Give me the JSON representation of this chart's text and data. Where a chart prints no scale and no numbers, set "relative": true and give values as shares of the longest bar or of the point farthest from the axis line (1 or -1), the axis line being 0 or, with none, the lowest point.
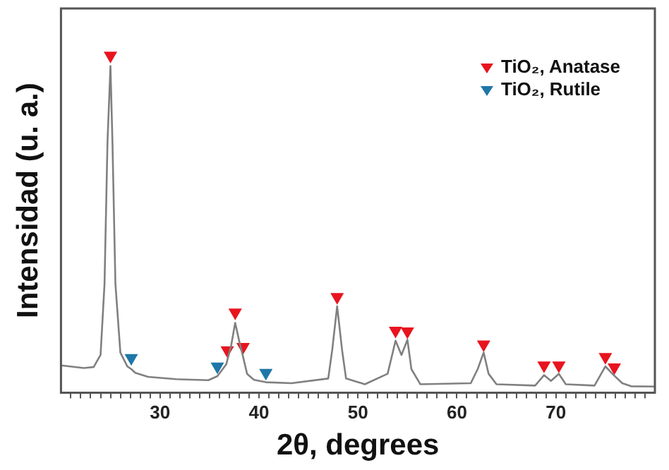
{
  "chart_data": {
    "type": "line",
    "relative": true,
    "xlabel": "2θ, degrees",
    "ylabel": "Intensidad (u. a.)",
    "xlim": [
      20,
      80
    ],
    "xticks": [
      {
        "value": 21,
        "label": null
      },
      {
        "value": 22,
        "label": null
      },
      {
        "value": 23,
        "label": null
      },
      {
        "value": 24,
        "label": null
      },
      {
        "value": 25,
        "label": null
      },
      {
        "value": 26,
        "label": null
      },
      {
        "value": 27,
        "label": null
      },
      {
        "value": 28,
        "label": null
      },
      {
        "value": 29,
        "label": null
      },
      30,
      {
        "value": 31,
        "label": null
      },
      {
        "value": 32,
        "label": null
      },
      {
        "value": 33,
        "label": null
      },
      {
        "value": 34,
        "label": null
      },
      {
        "value": 35,
        "label": null
      },
      {
        "value": 36,
        "label": null
      },
      {
        "value": 37,
        "label": null
      },
      {
        "value": 38,
        "label": null
      },
      {
        "value": 39,
        "label": null
      },
      40,
      {
        "value": 41,
        "label": null
      },
      {
        "value": 42,
        "label": null
      },
      {
        "value": 43,
        "label": null
      },
      {
        "value": 44,
        "label": null
      },
      {
        "value": 45,
        "label": null
      },
      {
        "value": 46,
        "label": null
      },
      {
        "value": 47,
        "label": null
      },
      {
        "value": 48,
        "label": null
      },
      {
        "value": 49,
        "label": null
      },
      50,
      {
        "value": 51,
        "label": null
      },
      {
        "value": 52,
        "label": null
      },
      {
        "value": 53,
        "label": null
      },
      {
        "value": 54,
        "label": null
      },
      {
        "value": 55,
        "label": null
      },
      {
        "value": 56,
        "label": null
      },
      {
        "value": 57,
        "label": null
      },
      {
        "value": 58,
        "label": null
      },
      {
        "value": 59,
        "label": null
      },
      60,
      {
        "value": 61,
        "label": null
      },
      {
        "value": 62,
        "label": null
      },
      {
        "value": 63,
        "label": null
      },
      {
        "value": 64,
        "label": null
      },
      {
        "value": 65,
        "label": null
      },
      {
        "value": 66,
        "label": null
      },
      {
        "value": 67,
        "label": null
      },
      {
        "value": 68,
        "label": null
      },
      {
        "value": 69,
        "label": null
      },
      70,
      {
        "value": 71,
        "label": null
      },
      {
        "value": 72,
        "label": null
      },
      {
        "value": 73,
        "label": null
      },
      {
        "value": 74,
        "label": null
      },
      {
        "value": 75,
        "label": null
      },
      {
        "value": 76,
        "label": null
      },
      {
        "value": 77,
        "label": null
      },
      {
        "value": 78,
        "label": null
      },
      {
        "value": 79,
        "label": null
      }
    ],
    "legend": "top right",
    "marker": "none",
    "line_style": "solid",
    "series": [
      {
        "type": "line",
        "color": "#808080",
        "x": [
          20,
          22.3,
          23.3,
          24.0,
          24.4,
          24.7,
          25.0,
          25.2,
          25.5,
          26.0,
          26.7,
          27.1,
          27.5,
          28.8,
          31.6,
          34.9,
          35.8,
          36.7,
          37.2,
          37.6,
          38.0,
          38.4,
          38.8,
          39.5,
          40.7,
          43.3,
          47.0,
          47.4,
          47.9,
          48.4,
          48.8,
          50.7,
          53.0,
          53.8,
          54.4,
          55.0,
          55.4,
          56.3,
          61.4,
          62.1,
          62.7,
          63.2,
          64.0,
          67.9,
          68.8,
          69.5,
          70.3,
          71.0,
          73.9,
          75.0,
          75.7,
          76.7,
          77.6,
          80
        ],
        "values": [
          0.081,
          0.073,
          0.076,
          0.112,
          0.323,
          0.744,
          0.969,
          0.744,
          0.323,
          0.119,
          0.078,
          0.07,
          0.059,
          0.047,
          0.04,
          0.037,
          0.049,
          0.084,
          0.141,
          0.207,
          0.154,
          0.106,
          0.056,
          0.038,
          0.031,
          0.028,
          0.042,
          0.126,
          0.256,
          0.126,
          0.042,
          0.025,
          0.056,
          0.154,
          0.112,
          0.157,
          0.07,
          0.025,
          0.028,
          0.07,
          0.119,
          0.056,
          0.025,
          0.021,
          0.052,
          0.035,
          0.056,
          0.025,
          0.021,
          0.078,
          0.056,
          0.028,
          0.019,
          0.018
        ]
      },
      {
        "type": "scatter",
        "name": "TiO₂, Anatase",
        "color": "#e8141e",
        "marker": "triangle",
        "x": [
          25.0,
          36.8,
          37.6,
          38.4,
          47.9,
          53.8,
          55.0,
          62.7,
          68.8,
          70.3,
          75.0,
          75.9
        ],
        "values": [
          1.0,
          0.126,
          0.238,
          0.136,
          0.284,
          0.184,
          0.182,
          0.143,
          0.081,
          0.081,
          0.106,
          0.075
        ]
      },
      {
        "type": "scatter",
        "name": "TiO₂, Rutile",
        "color": "#1f77a8",
        "marker": "triangle",
        "x": [
          27.1,
          35.8,
          40.7
        ],
        "values": [
          0.103,
          0.078,
          0.059
        ]
      }
    ]
  }
}
